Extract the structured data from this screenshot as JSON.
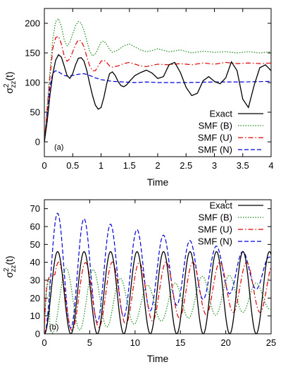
{
  "chart_data": [
    {
      "type": "line",
      "panel_label": "(a)",
      "xlabel": "Time",
      "ylabel": "σ²zz(t)",
      "ylabel_main": "σ",
      "ylabel_sup": "2",
      "ylabel_sub": "zz",
      "ylabel_arg": "(t)",
      "xlim": [
        0,
        4
      ],
      "ylim": [
        -25,
        225
      ],
      "xticks": [
        0,
        0.5,
        1,
        1.5,
        2,
        2.5,
        3,
        3.5,
        4
      ],
      "xtick_labels": [
        "0",
        "0.5",
        "1",
        "1.5",
        "2",
        "2.5",
        "3",
        "3.5",
        "4"
      ],
      "yticks": [
        0,
        50,
        100,
        150,
        200
      ],
      "ytick_labels": [
        "0",
        "50",
        "100",
        "150",
        "200"
      ],
      "legend_position": "bottom-right",
      "series": [
        {
          "name": "Exact",
          "color": "#000000",
          "dash": "solid",
          "x": [
            0,
            0.05,
            0.1,
            0.15,
            0.2,
            0.25,
            0.3,
            0.35,
            0.4,
            0.45,
            0.5,
            0.55,
            0.6,
            0.65,
            0.7,
            0.75,
            0.8,
            0.85,
            0.9,
            0.95,
            1.0,
            1.05,
            1.1,
            1.15,
            1.2,
            1.25,
            1.3,
            1.35,
            1.4,
            1.45,
            1.5,
            1.6,
            1.7,
            1.8,
            1.9,
            2.0,
            2.1,
            2.2,
            2.3,
            2.4,
            2.5,
            2.6,
            2.7,
            2.8,
            2.9,
            3.0,
            3.1,
            3.2,
            3.3,
            3.4,
            3.5,
            3.6,
            3.7,
            3.8,
            3.9,
            4.0
          ],
          "y": [
            0,
            35,
            80,
            115,
            138,
            147,
            143,
            128,
            112,
            107,
            115,
            130,
            141,
            142,
            136,
            120,
            98,
            78,
            62,
            55,
            58,
            75,
            98,
            115,
            118,
            112,
            102,
            95,
            93,
            96,
            102,
            112,
            117,
            121,
            116,
            107,
            110,
            130,
            134,
            117,
            92,
            78,
            82,
            103,
            110,
            102,
            98,
            108,
            135,
            120,
            72,
            58,
            95,
            125,
            130,
            120
          ]
        },
        {
          "name": "SMF (B)",
          "color": "#1a8a1a",
          "dash": "dotted",
          "x": [
            0,
            0.05,
            0.1,
            0.15,
            0.2,
            0.25,
            0.3,
            0.35,
            0.4,
            0.45,
            0.5,
            0.55,
            0.6,
            0.65,
            0.7,
            0.75,
            0.8,
            0.85,
            0.9,
            0.95,
            1.0,
            1.05,
            1.1,
            1.15,
            1.2,
            1.3,
            1.4,
            1.5,
            1.6,
            1.7,
            1.8,
            1.9,
            2.0,
            2.2,
            2.4,
            2.6,
            2.8,
            3.0,
            3.2,
            3.4,
            3.6,
            3.8,
            4.0
          ],
          "y": [
            0,
            60,
            120,
            175,
            203,
            208,
            195,
            172,
            162,
            168,
            182,
            196,
            203,
            200,
            188,
            170,
            153,
            145,
            148,
            158,
            168,
            170,
            164,
            156,
            151,
            155,
            162,
            165,
            160,
            155,
            152,
            154,
            157,
            152,
            155,
            150,
            153,
            151,
            152,
            150,
            152,
            150,
            152
          ]
        },
        {
          "name": "SMF (U)",
          "color": "#e00000",
          "dash": "dashdot",
          "x": [
            0,
            0.05,
            0.1,
            0.15,
            0.2,
            0.25,
            0.3,
            0.35,
            0.4,
            0.45,
            0.5,
            0.55,
            0.6,
            0.65,
            0.7,
            0.75,
            0.8,
            0.85,
            0.9,
            0.95,
            1.0,
            1.05,
            1.1,
            1.15,
            1.2,
            1.3,
            1.4,
            1.5,
            1.6,
            1.7,
            1.8,
            1.9,
            2.0,
            2.2,
            2.4,
            2.6,
            2.8,
            3.0,
            3.2,
            3.4,
            3.6,
            3.8,
            4.0
          ],
          "y": [
            0,
            55,
            110,
            158,
            176,
            178,
            165,
            145,
            136,
            140,
            152,
            164,
            172,
            170,
            160,
            143,
            128,
            120,
            120,
            128,
            136,
            138,
            134,
            128,
            126,
            128,
            132,
            134,
            131,
            128,
            127,
            129,
            131,
            130,
            132,
            130,
            133,
            131,
            134,
            132,
            133,
            132,
            133
          ]
        },
        {
          "name": "SMF (N)",
          "color": "#0000dd",
          "dash": "dashed",
          "x": [
            0,
            0.05,
            0.1,
            0.15,
            0.2,
            0.25,
            0.3,
            0.35,
            0.4,
            0.45,
            0.5,
            0.6,
            0.7,
            0.8,
            0.9,
            1.0,
            1.2,
            1.4,
            1.6,
            1.8,
            2.0,
            2.5,
            3.0,
            3.5,
            4.0
          ],
          "y": [
            0,
            50,
            95,
            116,
            120,
            118,
            115,
            112,
            111,
            111,
            112,
            114,
            115,
            112,
            108,
            105,
            102,
            101,
            100,
            101,
            100,
            100,
            101,
            101,
            102
          ]
        }
      ]
    },
    {
      "type": "line",
      "panel_label": "(b)",
      "xlabel": "Time",
      "ylabel": "σ²zz(t)",
      "ylabel_main": "σ",
      "ylabel_sup": "2",
      "ylabel_sub": "zz",
      "ylabel_arg": "(t)",
      "xlim": [
        0,
        25
      ],
      "ylim": [
        0,
        75
      ],
      "xticks": [
        0,
        5,
        10,
        15,
        20,
        25
      ],
      "xtick_labels": [
        "0",
        "5",
        "10",
        "15",
        "20",
        "25"
      ],
      "yticks": [
        0,
        10,
        20,
        30,
        40,
        50,
        60,
        70
      ],
      "ytick_labels": [
        "0",
        "10",
        "20",
        "30",
        "40",
        "50",
        "60",
        "70"
      ],
      "legend_position": "top-right",
      "series": [
        {
          "name": "Exact",
          "color": "#000000",
          "dash": "solid",
          "description": "periodic oscillation between 0 and 46, period 2.9, first peak at t=1.4"
        },
        {
          "name": "SMF (B)",
          "color": "#1a8a1a",
          "dash": "dotted",
          "description": "oscillation starting near 30-35, minima near 0, decaying amplitude toward ~25"
        },
        {
          "name": "SMF (U)",
          "color": "#e00000",
          "dash": "dashdot",
          "description": "oscillation peaks 38-45, minima rising to ~12 by t=25"
        },
        {
          "name": "SMF (N)",
          "color": "#0000dd",
          "dash": "dashed",
          "description": "oscillation peaks 69 decaying to ~43, minima near 0 rising to ~25"
        }
      ]
    }
  ],
  "legend_labels": [
    "Exact",
    "SMF (B)",
    "SMF (U)",
    "SMF (N)"
  ]
}
